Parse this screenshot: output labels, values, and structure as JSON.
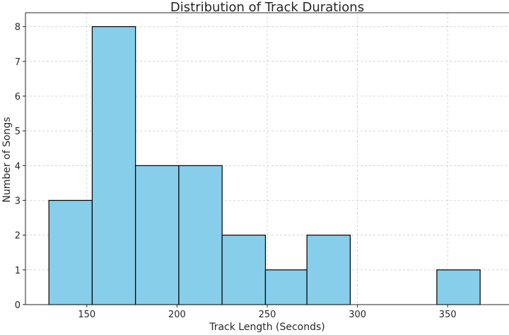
{
  "chart_data": {
    "type": "bar",
    "title": "Distribution of Track Durations",
    "xlabel": "Track Length (Seconds)",
    "ylabel": "Number of Songs",
    "bins": [
      {
        "start": 129,
        "end": 153,
        "count": 3
      },
      {
        "start": 153,
        "end": 177,
        "count": 8
      },
      {
        "start": 177,
        "end": 201,
        "count": 4
      },
      {
        "start": 201,
        "end": 225,
        "count": 4
      },
      {
        "start": 225,
        "end": 249,
        "count": 2
      },
      {
        "start": 249,
        "end": 272,
        "count": 1
      },
      {
        "start": 272,
        "end": 296,
        "count": 2
      },
      {
        "start": 296,
        "end": 320,
        "count": 0
      },
      {
        "start": 320,
        "end": 344,
        "count": 0
      },
      {
        "start": 344,
        "end": 368,
        "count": 1
      }
    ],
    "xlim": [
      116,
      384
    ],
    "ylim": [
      0,
      8.4
    ],
    "xticks": [
      150,
      200,
      250,
      300,
      350
    ],
    "yticks": [
      0,
      1,
      2,
      3,
      4,
      5,
      6,
      7,
      8
    ],
    "grid": true,
    "colors": {
      "bar_fill": "#87CEEB",
      "bar_edge": "#000000"
    }
  }
}
